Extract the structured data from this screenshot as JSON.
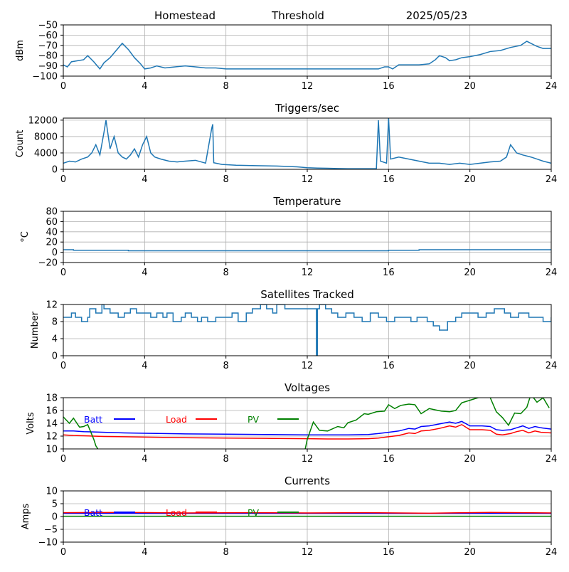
{
  "header": {
    "site": "Homestead",
    "mode": "Threshold",
    "date": "2025/05/23"
  },
  "x_ticks": [
    "0",
    "4",
    "8",
    "12",
    "16",
    "20",
    "24"
  ],
  "colors": {
    "series": "#1f77b4",
    "batt": "#0000ff",
    "load": "#ff0000",
    "pv": "#008000",
    "grid": "#b0b0b0"
  },
  "chart_data": [
    {
      "id": "signal",
      "type": "line",
      "title": "",
      "ylabel": "dBm",
      "xlim": [
        0,
        24
      ],
      "ylim": [
        -100,
        -50
      ],
      "yticks": [
        -100,
        -90,
        -80,
        -70,
        -60,
        -50
      ],
      "ytick_labels": [
        "−100",
        "−90",
        "−80",
        "−70",
        "−60",
        "−50"
      ],
      "series": [
        {
          "color": "#1f77b4",
          "x": [
            0,
            0.2,
            0.4,
            0.7,
            1.0,
            1.2,
            1.5,
            1.8,
            2.0,
            2.3,
            2.6,
            2.9,
            3.2,
            3.5,
            3.8,
            4.0,
            4.3,
            4.6,
            5.0,
            5.5,
            6.0,
            6.5,
            7.0,
            7.5,
            8,
            10,
            12,
            14,
            15.5,
            15.8,
            16.0,
            16.2,
            16.5,
            17.0,
            17.5,
            18.0,
            18.3,
            18.5,
            18.8,
            19.0,
            19.3,
            19.6,
            20.0,
            20.5,
            21.0,
            21.5,
            22.0,
            22.5,
            22.8,
            23.0,
            23.3,
            23.6,
            24
          ],
          "y": [
            -89,
            -91,
            -86,
            -85,
            -84,
            -80,
            -86,
            -93,
            -87,
            -82,
            -75,
            -68,
            -74,
            -82,
            -88,
            -93,
            -92,
            -90,
            -92,
            -91,
            -90,
            -91,
            -92,
            -92,
            -93,
            -93,
            -93,
            -93,
            -93,
            -91,
            -91,
            -93,
            -89,
            -89,
            -89,
            -88,
            -84,
            -80,
            -82,
            -85,
            -84,
            -82,
            -81,
            -79,
            -76,
            -75,
            -72,
            -70,
            -66,
            -68,
            -71,
            -73,
            -73
          ]
        }
      ]
    },
    {
      "id": "triggers",
      "type": "line",
      "title": "Triggers/sec",
      "ylabel": "Count",
      "xlim": [
        0,
        24
      ],
      "ylim": [
        0,
        12500
      ],
      "yticks": [
        0,
        4000,
        8000,
        12000
      ],
      "ytick_labels": [
        "0",
        "4000",
        "8000",
        "12000"
      ],
      "series": [
        {
          "color": "#1f77b4",
          "x": [
            0,
            0.3,
            0.6,
            0.9,
            1.2,
            1.4,
            1.6,
            1.8,
            2.0,
            2.1,
            2.3,
            2.5,
            2.7,
            2.9,
            3.1,
            3.3,
            3.5,
            3.7,
            3.9,
            4.1,
            4.3,
            4.5,
            4.8,
            5.2,
            5.6,
            6.0,
            6.5,
            7.0,
            7.3,
            7.35,
            7.4,
            7.8,
            8.5,
            9.5,
            10.5,
            11.5,
            12.0,
            12.5,
            13.0,
            13.5,
            14.0,
            14.5,
            15.0,
            15.4,
            15.5,
            15.6,
            15.9,
            16.0,
            16.1,
            16.5,
            17.0,
            17.5,
            18.0,
            18.5,
            19.0,
            19.5,
            20.0,
            20.5,
            21.0,
            21.5,
            21.8,
            22.0,
            22.3,
            22.6,
            23.0,
            23.3,
            23.6,
            24
          ],
          "y": [
            1500,
            2000,
            1800,
            2500,
            3000,
            4000,
            6000,
            3500,
            9000,
            12000,
            5000,
            8000,
            4000,
            3000,
            2500,
            3500,
            5000,
            3000,
            6000,
            8000,
            4000,
            3000,
            2500,
            2000,
            1800,
            2000,
            2200,
            1500,
            10000,
            11000,
            1600,
            1200,
            1000,
            900,
            800,
            600,
            400,
            300,
            250,
            200,
            150,
            150,
            150,
            150,
            12000,
            2000,
            1500,
            12500,
            2500,
            3000,
            2500,
            2000,
            1500,
            1500,
            1200,
            1500,
            1200,
            1500,
            1800,
            2000,
            3000,
            6000,
            4000,
            3500,
            3000,
            2500,
            2000,
            1500
          ]
        }
      ]
    },
    {
      "id": "temperature",
      "type": "line",
      "title": "Temperature",
      "ylabel": "°C",
      "xlim": [
        0,
        24
      ],
      "ylim": [
        -20,
        80
      ],
      "yticks": [
        -20,
        0,
        20,
        40,
        60,
        80
      ],
      "ytick_labels": [
        "−20",
        "0",
        "20",
        "40",
        "60",
        "80"
      ],
      "series": [
        {
          "color": "#1f77b4",
          "x": [
            0,
            0.5,
            0.5,
            3.2,
            3.2,
            16,
            16,
            17.5,
            17.5,
            24
          ],
          "y": [
            5,
            5,
            4,
            4,
            3,
            3,
            4,
            4,
            5,
            5
          ]
        }
      ]
    },
    {
      "id": "satellites",
      "type": "line",
      "step": true,
      "title": "Satellites Tracked",
      "ylabel": "Number",
      "xlim": [
        0,
        24
      ],
      "ylim": [
        0,
        12
      ],
      "yticks": [
        0,
        4,
        8,
        12
      ],
      "ytick_labels": [
        "0",
        "4",
        "8",
        "12"
      ],
      "series": [
        {
          "color": "#1f77b4",
          "x": [
            0,
            0.4,
            0.6,
            0.9,
            1.2,
            1.3,
            1.6,
            1.9,
            2.0,
            2.3,
            2.7,
            3.0,
            3.3,
            3.6,
            4.0,
            4.3,
            4.6,
            4.9,
            5.1,
            5.4,
            5.8,
            6.0,
            6.3,
            6.6,
            6.8,
            7.1,
            7.5,
            8.0,
            8.3,
            8.6,
            9.0,
            9.3,
            9.7,
            10.0,
            10.3,
            10.5,
            10.9,
            11.2,
            12.0,
            12.4,
            12.45,
            12.5,
            12.6,
            12.9,
            13.2,
            13.5,
            13.9,
            14.3,
            14.7,
            15.1,
            15.5,
            15.9,
            16.3,
            16.8,
            17.1,
            17.4,
            17.9,
            18.2,
            18.5,
            18.9,
            19.3,
            19.6,
            20.0,
            20.4,
            20.8,
            21.2,
            21.7,
            22.0,
            22.4,
            22.9,
            23.6,
            23.9,
            24
          ],
          "y": [
            9,
            10,
            9,
            8,
            9,
            11,
            10,
            12,
            11,
            10,
            9,
            10,
            11,
            10,
            10,
            9,
            10,
            9,
            10,
            8,
            9,
            10,
            9,
            8,
            9,
            8,
            9,
            9,
            10,
            8,
            10,
            11,
            12,
            11,
            10,
            12,
            11,
            11,
            11,
            11,
            0,
            11,
            12,
            11,
            10,
            9,
            10,
            9,
            8,
            10,
            9,
            8,
            9,
            9,
            8,
            9,
            8,
            7,
            6,
            8,
            9,
            10,
            10,
            9,
            10,
            11,
            10,
            9,
            10,
            9,
            8,
            8,
            9
          ]
        }
      ]
    },
    {
      "id": "voltages",
      "type": "line",
      "title": "Voltages",
      "ylabel": "Volts",
      "xlim": [
        0,
        24
      ],
      "ylim": [
        10,
        18
      ],
      "yticks": [
        10,
        12,
        14,
        16,
        18
      ],
      "ytick_labels": [
        "10",
        "12",
        "14",
        "16",
        "18"
      ],
      "legend_position": "upper",
      "series": [
        {
          "name": "Batt",
          "color": "#0000ff",
          "x": [
            0,
            0.5,
            1,
            2,
            3,
            4,
            6,
            8,
            10,
            12,
            13,
            14,
            15,
            15.5,
            16,
            16.5,
            17,
            17.3,
            17.6,
            18,
            18.5,
            19,
            19.3,
            19.6,
            20,
            20.3,
            20.6,
            21.0,
            21.3,
            21.6,
            22,
            22.3,
            22.6,
            22.9,
            23.2,
            23.5,
            24
          ],
          "y": [
            12.8,
            12.8,
            12.7,
            12.6,
            12.5,
            12.45,
            12.35,
            12.3,
            12.25,
            12.2,
            12.2,
            12.2,
            12.25,
            12.4,
            12.6,
            12.8,
            13.2,
            13.1,
            13.5,
            13.6,
            13.9,
            14.2,
            14.0,
            14.3,
            13.6,
            13.6,
            13.6,
            13.5,
            13.0,
            12.9,
            13.0,
            13.3,
            13.6,
            13.2,
            13.5,
            13.3,
            13.1
          ]
        },
        {
          "name": "Load",
          "color": "#ff0000",
          "x": [
            0,
            0.5,
            1,
            2,
            3,
            4,
            6,
            8,
            10,
            12,
            13,
            14,
            15,
            15.5,
            16,
            16.5,
            17,
            17.3,
            17.6,
            18,
            18.5,
            19,
            19.3,
            19.6,
            20,
            20.3,
            20.6,
            21.0,
            21.3,
            21.6,
            22,
            22.3,
            22.6,
            22.9,
            23.2,
            23.5,
            24
          ],
          "y": [
            12.2,
            12.1,
            12.05,
            11.95,
            11.9,
            11.85,
            11.75,
            11.7,
            11.65,
            11.6,
            11.55,
            11.55,
            11.6,
            11.7,
            11.9,
            12.1,
            12.5,
            12.4,
            12.8,
            12.9,
            13.2,
            13.6,
            13.4,
            13.8,
            13.0,
            13.0,
            13.0,
            12.9,
            12.3,
            12.2,
            12.4,
            12.7,
            12.9,
            12.5,
            12.8,
            12.6,
            12.5
          ]
        },
        {
          "name": "PV",
          "color": "#008000",
          "x": [
            0,
            0.3,
            0.5,
            0.8,
            1.0,
            1.2,
            1.5,
            1.6,
            1.7
          ],
          "y": [
            15.0,
            14.0,
            14.8,
            13.4,
            13.5,
            13.8,
            11.5,
            10.5,
            10.0
          ]
        },
        {
          "name": "",
          "color": "#008000",
          "x": [
            11.9,
            12.0,
            12.3,
            12.6,
            13.0,
            13.5,
            13.8,
            14.0,
            14.4,
            14.8,
            15.0,
            15.4,
            15.8,
            16.0,
            16.3,
            16.6,
            17.0,
            17.3,
            17.6,
            18.0,
            18.3,
            18.6,
            19.0,
            19.3,
            19.6,
            20.0,
            20.4,
            20.8,
            21.0,
            21.3,
            21.6,
            21.9,
            22.2,
            22.5,
            22.8,
            23.0,
            23.3,
            23.6,
            23.9
          ],
          "y": [
            10.0,
            11.5,
            14.2,
            12.9,
            12.8,
            13.5,
            13.3,
            14.1,
            14.5,
            15.5,
            15.4,
            15.8,
            15.9,
            16.9,
            16.3,
            16.8,
            17.0,
            16.9,
            15.5,
            16.3,
            16.1,
            15.9,
            15.8,
            16.0,
            17.2,
            17.6,
            18.0,
            18.2,
            18.0,
            15.8,
            14.9,
            13.7,
            15.6,
            15.5,
            16.5,
            18.5,
            17.3,
            18.0,
            16.4
          ]
        }
      ]
    },
    {
      "id": "currents",
      "type": "line",
      "title": "Currents",
      "ylabel": "Amps",
      "xlim": [
        0,
        24
      ],
      "ylim": [
        -10,
        10
      ],
      "yticks": [
        -10,
        -5,
        0,
        5,
        10
      ],
      "ytick_labels": [
        "−10",
        "−5",
        "0",
        "5",
        "10"
      ],
      "legend_position": "upper",
      "series": [
        {
          "name": "Batt",
          "color": "#0000ff",
          "x": [
            0,
            24
          ],
          "y": [
            1.2,
            1.2
          ]
        },
        {
          "name": "Load",
          "color": "#ff0000",
          "x": [
            0,
            3,
            6,
            9,
            12,
            15,
            18,
            21,
            24
          ],
          "y": [
            1.5,
            1.6,
            1.4,
            1.5,
            1.4,
            1.5,
            1.3,
            1.6,
            1.4
          ]
        },
        {
          "name": "PV",
          "color": "#008000",
          "x": [
            0,
            24
          ],
          "y": [
            0.1,
            0.1
          ]
        }
      ]
    }
  ]
}
